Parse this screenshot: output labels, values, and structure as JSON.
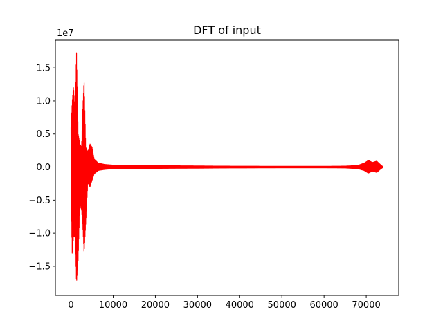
{
  "chart_data": {
    "type": "line",
    "title": "DFT of input",
    "xlabel": "",
    "ylabel": "",
    "y_scale_label": "1e7",
    "xlim": [
      -3700,
      77700
    ],
    "ylim": [
      -19400000.0,
      19200000.0
    ],
    "grid": false,
    "line_color": "#ff0000",
    "x_ticks": [
      0,
      10000,
      20000,
      30000,
      40000,
      50000,
      60000,
      70000
    ],
    "x_tick_labels": [
      "0",
      "10000",
      "20000",
      "30000",
      "40000",
      "50000",
      "60000",
      "70000"
    ],
    "y_ticks": [
      -15000000,
      -10000000,
      -5000000,
      0,
      5000000,
      10000000,
      15000000
    ],
    "y_tick_labels": [
      "−1.5",
      "−1.0",
      "−0.5",
      "0.0",
      "0.5",
      "1.0",
      "1.5"
    ],
    "series": [
      {
        "x_range": [
          0,
          74000
        ],
        "envelope": [
          [
            0,
            6000000,
            -4600000
          ],
          [
            300,
            10000000,
            -13400000
          ],
          [
            600,
            12200000,
            -10500000
          ],
          [
            1000,
            8000000,
            -10600000
          ],
          [
            1300,
            17700000,
            -17600000
          ],
          [
            1700,
            5000000,
            -14000000
          ],
          [
            2100,
            3500000,
            -5500000
          ],
          [
            2500,
            3000000,
            -6500000
          ],
          [
            2800,
            9000000,
            -9000000
          ],
          [
            3100,
            13200000,
            -13000000
          ],
          [
            3500,
            3000000,
            -8500000
          ],
          [
            4000,
            2300000,
            -2300000
          ],
          [
            4500,
            3500000,
            -3000000
          ],
          [
            5000,
            3000000,
            -2000000
          ],
          [
            5500,
            1200000,
            -1000000
          ],
          [
            6500,
            600000,
            -500000
          ],
          [
            8000,
            400000,
            -350000
          ],
          [
            10000,
            300000,
            -250000
          ],
          [
            15000,
            250000,
            -200000
          ],
          [
            20000,
            230000,
            -200000
          ],
          [
            25000,
            200000,
            -180000
          ],
          [
            30000,
            180000,
            -170000
          ],
          [
            35000,
            150000,
            -140000
          ],
          [
            40000,
            140000,
            -130000
          ],
          [
            45000,
            130000,
            -120000
          ],
          [
            50000,
            120000,
            -110000
          ],
          [
            55000,
            120000,
            -110000
          ],
          [
            60000,
            120000,
            -110000
          ],
          [
            65000,
            150000,
            -130000
          ],
          [
            68000,
            250000,
            -250000
          ],
          [
            69500,
            600000,
            -500000
          ],
          [
            70500,
            1000000,
            -900000
          ],
          [
            71500,
            700000,
            -600000
          ],
          [
            72500,
            900000,
            -800000
          ],
          [
            73500,
            300000,
            -250000
          ],
          [
            74000,
            50000,
            -50000
          ]
        ]
      }
    ]
  }
}
